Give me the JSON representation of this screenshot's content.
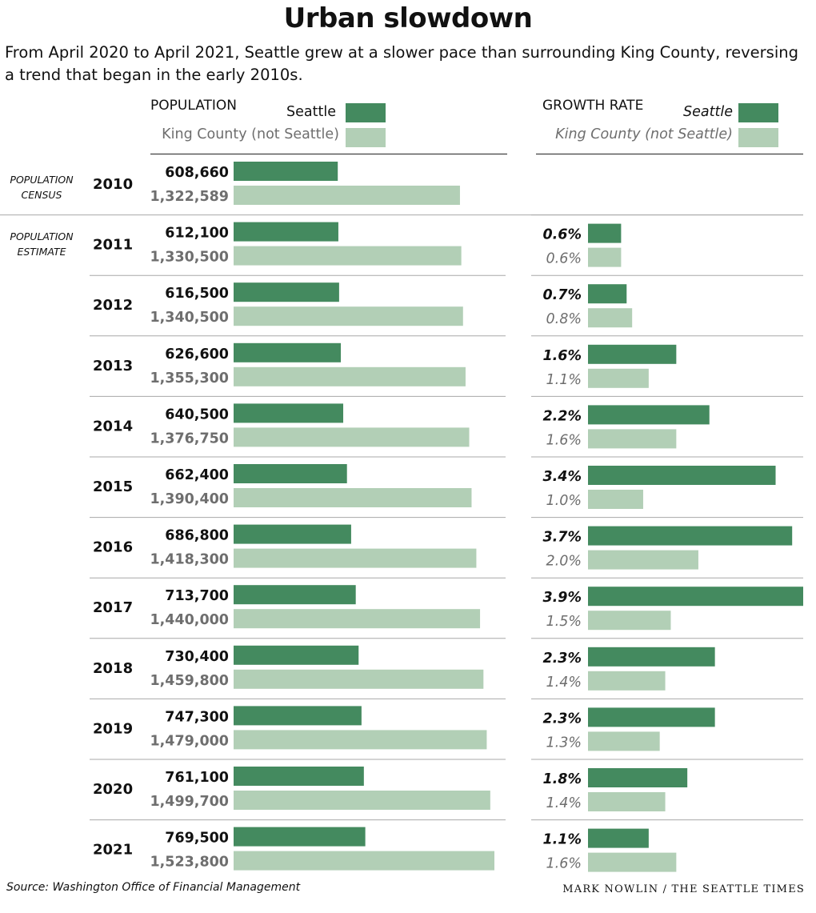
{
  "title": "Urban slowdown",
  "subtitle": "From April 2020 to April 2021, Seattle grew at a slower pace than surrounding King County, reversing a trend that began in the early 2010s.",
  "headers": {
    "population": "POPULATION",
    "growth_rate": "GROWTH RATE"
  },
  "legend": {
    "seattle": "Seattle",
    "king_county": "King County (not Seattle)"
  },
  "side_notes": {
    "census": "POPULATION CENSUS",
    "estimate": "POPULATION ESTIMATE"
  },
  "colors": {
    "seattle": "#448a5f",
    "king_county": "#b2cfb6",
    "seattle_text": "#111111",
    "king_county_text": "#6e6e6e"
  },
  "source": "Source: Washington Office of Financial Management",
  "credit": "MARK NOWLIN / THE SEATTLE TIMES",
  "chart_data": [
    {
      "type": "bar",
      "title": "POPULATION",
      "categories": [
        "2010",
        "2011",
        "2012",
        "2013",
        "2014",
        "2015",
        "2016",
        "2017",
        "2018",
        "2019",
        "2020",
        "2021"
      ],
      "series": [
        {
          "name": "Seattle",
          "values": [
            608660,
            612100,
            616500,
            626600,
            640500,
            662400,
            686800,
            713700,
            730400,
            747300,
            761100,
            769500
          ],
          "labels": [
            "608,660",
            "612,100",
            "616,500",
            "626,600",
            "640,500",
            "662,400",
            "686,800",
            "713,700",
            "730,400",
            "747,300",
            "761,100",
            "769,500"
          ]
        },
        {
          "name": "King County (not Seattle)",
          "values": [
            1322589,
            1330500,
            1340500,
            1355300,
            1376750,
            1390400,
            1418300,
            1440000,
            1459800,
            1479000,
            1499700,
            1523800
          ],
          "labels": [
            "1,322,589",
            "1,330,500",
            "1,340,500",
            "1,355,300",
            "1,376,750",
            "1,390,400",
            "1,418,300",
            "1,440,000",
            "1,459,800",
            "1,479,000",
            "1,499,700",
            "1,523,800"
          ]
        }
      ],
      "xlim": [
        0,
        1523800
      ],
      "orientation": "horizontal",
      "grid": false
    },
    {
      "type": "bar",
      "title": "GROWTH RATE",
      "categories": [
        "2011",
        "2012",
        "2013",
        "2014",
        "2015",
        "2016",
        "2017",
        "2018",
        "2019",
        "2020",
        "2021"
      ],
      "series": [
        {
          "name": "Seattle",
          "values": [
            0.6,
            0.7,
            1.6,
            2.2,
            3.4,
            3.7,
            3.9,
            2.3,
            2.3,
            1.8,
            1.1
          ],
          "labels": [
            "0.6%",
            "0.7%",
            "1.6%",
            "2.2%",
            "3.4%",
            "3.7%",
            "3.9%",
            "2.3%",
            "2.3%",
            "1.8%",
            "1.1%"
          ]
        },
        {
          "name": "King County (not Seattle)",
          "values": [
            0.6,
            0.8,
            1.1,
            1.6,
            1.0,
            2.0,
            1.5,
            1.4,
            1.3,
            1.4,
            1.6
          ],
          "labels": [
            "0.6%",
            "0.8%",
            "1.1%",
            "1.6%",
            "1.0%",
            "2.0%",
            "1.5%",
            "1.4%",
            "1.3%",
            "1.4%",
            "1.6%"
          ]
        }
      ],
      "xlim": [
        0,
        3.9
      ],
      "orientation": "horizontal",
      "grid": false
    }
  ]
}
